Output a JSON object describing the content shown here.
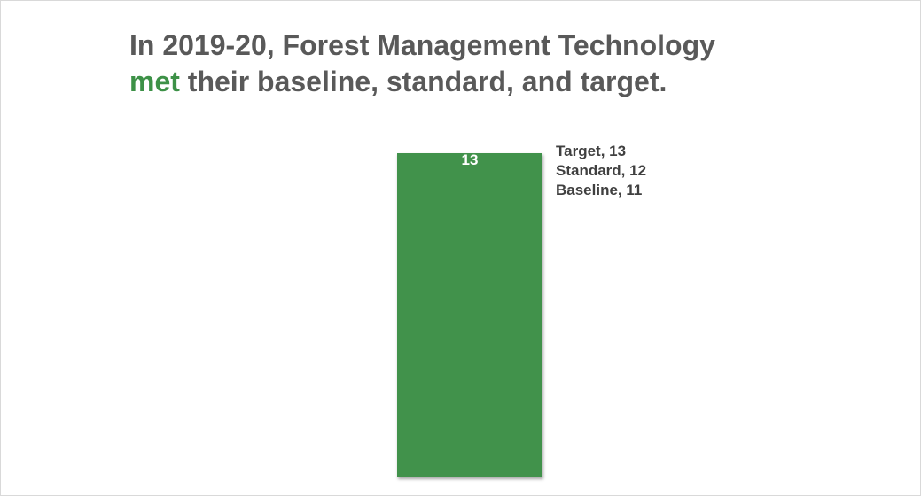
{
  "title": {
    "line1": "In 2019-20, Forest Management Technology",
    "highlight": "met",
    "line2_rest": " their baseline, standard, and target."
  },
  "colors": {
    "bar": "#41924b",
    "highlight": "#3d9147",
    "title": "#595959",
    "labels": "#404040"
  },
  "chart_data": {
    "type": "bar",
    "categories": [
      "2019-20"
    ],
    "values": [
      13
    ],
    "data_labels": [
      "13"
    ],
    "thresholds": [
      {
        "name": "Target",
        "value": 13,
        "label": "Target, 13"
      },
      {
        "name": "Standard",
        "value": 12,
        "label": "Standard, 12"
      },
      {
        "name": "Baseline",
        "value": 11,
        "label": "Baseline, 11"
      }
    ],
    "ylim": [
      0,
      13
    ],
    "grid": false
  }
}
